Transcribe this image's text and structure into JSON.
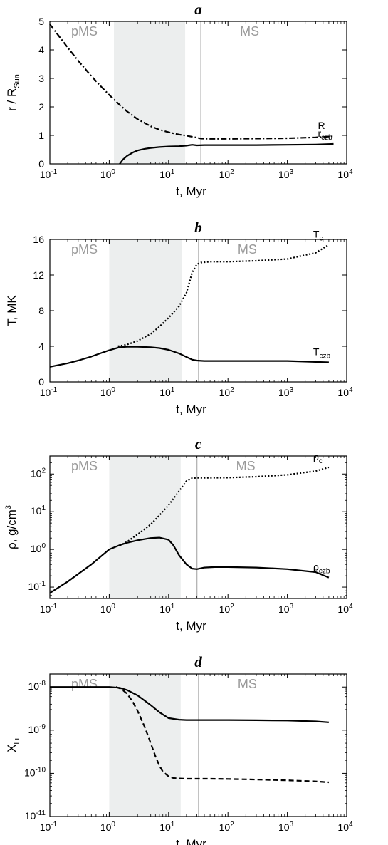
{
  "chart_data": [
    {
      "type": "line",
      "title": "a",
      "xlabel": "t, Myr",
      "ylabel": "r / R",
      "ylabel_sub": "Sun",
      "xscale": "log",
      "xlim": [
        0.1,
        10000
      ],
      "ylim": [
        0,
        5
      ],
      "yticks": [
        0,
        1,
        2,
        3,
        4,
        5
      ],
      "regions": [
        {
          "label": "pMS",
          "x": [
            1.2,
            19
          ],
          "shaded": true
        },
        {
          "label": "MS",
          "x": [
            35,
            10000
          ],
          "shaded": false
        }
      ],
      "marker_line_x": 35,
      "series": [
        {
          "label": "R",
          "label_sub": "",
          "style": "dashdot",
          "x": [
            0.1,
            0.15,
            0.2,
            0.3,
            0.5,
            0.7,
            1,
            1.5,
            2,
            3,
            5,
            7,
            10,
            15,
            20,
            30,
            35,
            50,
            100,
            300,
            1000,
            3000,
            6000
          ],
          "y": [
            4.9,
            4.42,
            4.08,
            3.62,
            3.08,
            2.75,
            2.42,
            2.07,
            1.84,
            1.57,
            1.32,
            1.2,
            1.11,
            1.03,
            0.99,
            0.92,
            0.89,
            0.88,
            0.88,
            0.89,
            0.9,
            0.93,
            0.97
          ]
        },
        {
          "label": "r",
          "label_sub": "czb",
          "style": "solid",
          "x": [
            1.5,
            1.7,
            2,
            2.5,
            3,
            4,
            5,
            7,
            10,
            15,
            20,
            25,
            30,
            40,
            100,
            300,
            1000,
            3000,
            6000
          ],
          "y": [
            0,
            0.15,
            0.28,
            0.4,
            0.47,
            0.53,
            0.56,
            0.59,
            0.61,
            0.62,
            0.64,
            0.67,
            0.65,
            0.66,
            0.66,
            0.66,
            0.67,
            0.68,
            0.7
          ]
        }
      ]
    },
    {
      "type": "line",
      "title": "b",
      "xlabel": "t, Myr",
      "ylabel": "T, MK",
      "ylabel_sub": "",
      "xscale": "log",
      "xlim": [
        0.1,
        10000
      ],
      "ylim": [
        0,
        16
      ],
      "yticks": [
        0,
        4,
        8,
        12,
        16
      ],
      "regions": [
        {
          "label": "pMS",
          "x": [
            1.0,
            17
          ],
          "shaded": true
        },
        {
          "label": "MS",
          "x": [
            32,
            10000
          ],
          "shaded": false
        }
      ],
      "marker_line_x": 32,
      "series": [
        {
          "label": "T",
          "label_sub": "c",
          "style": "dotted",
          "x": [
            1.4,
            2,
            3,
            5,
            7,
            10,
            15,
            20,
            25,
            30,
            35,
            50,
            100,
            300,
            1000,
            3000,
            5000
          ],
          "y": [
            4.0,
            4.2,
            4.6,
            5.4,
            6.2,
            7.2,
            8.5,
            10.0,
            12.3,
            13.2,
            13.4,
            13.5,
            13.5,
            13.6,
            13.8,
            14.5,
            15.4
          ]
        },
        {
          "label": "T",
          "label_sub": "czb",
          "style": "solid",
          "x": [
            0.1,
            0.2,
            0.3,
            0.5,
            0.7,
            1,
            1.5,
            2,
            3,
            5,
            7,
            10,
            15,
            20,
            25,
            30,
            40,
            100,
            1000,
            5000
          ],
          "y": [
            1.7,
            2.1,
            2.4,
            2.85,
            3.2,
            3.55,
            3.9,
            3.95,
            3.95,
            3.9,
            3.8,
            3.6,
            3.2,
            2.8,
            2.5,
            2.4,
            2.35,
            2.35,
            2.35,
            2.2
          ]
        }
      ]
    },
    {
      "type": "line",
      "title": "c",
      "xlabel": "t, Myr",
      "ylabel": "ρ, g/cm",
      "ylabel_sup": "3",
      "xscale": "log",
      "yscale": "log",
      "xlim": [
        0.1,
        10000
      ],
      "ylim": [
        0.05,
        300
      ],
      "yticks": [
        0.1,
        1,
        10,
        100
      ],
      "regions": [
        {
          "label": "pMS",
          "x": [
            1.0,
            16
          ],
          "shaded": true
        },
        {
          "label": "MS",
          "x": [
            30,
            10000
          ],
          "shaded": false
        }
      ],
      "marker_line_x": 30,
      "series": [
        {
          "label": "ρ",
          "label_sub": "c",
          "style": "dotted",
          "x": [
            1.5,
            2,
            3,
            5,
            7,
            10,
            15,
            20,
            25,
            30,
            40,
            100,
            300,
            1000,
            3000,
            5000
          ],
          "y": [
            1.25,
            1.6,
            2.5,
            4.6,
            8,
            15,
            35,
            65,
            78,
            79,
            79,
            80,
            85,
            95,
            120,
            150
          ]
        },
        {
          "label": "ρ",
          "label_sub": "czb",
          "style": "solid",
          "x": [
            0.1,
            0.2,
            0.5,
            1,
            1.5,
            2,
            3,
            5,
            7,
            10,
            12,
            15,
            20,
            25,
            30,
            40,
            60,
            100,
            300,
            1000,
            3000,
            5000
          ],
          "y": [
            0.07,
            0.14,
            0.4,
            1.0,
            1.3,
            1.5,
            1.75,
            2.0,
            2.05,
            1.8,
            1.3,
            0.7,
            0.4,
            0.31,
            0.3,
            0.33,
            0.34,
            0.34,
            0.33,
            0.3,
            0.25,
            0.18
          ]
        }
      ]
    },
    {
      "type": "line",
      "title": "d",
      "xlabel": "t, Myr",
      "ylabel": "X",
      "ylabel_sub": "Li",
      "xscale": "log",
      "yscale": "log",
      "xlim": [
        0.1,
        10000
      ],
      "ylim": [
        1e-11,
        2e-08
      ],
      "yticks": [
        1e-11,
        1e-10,
        1e-09,
        1e-08
      ],
      "regions": [
        {
          "label": "pMS",
          "x": [
            1.0,
            16
          ],
          "shaded": true
        },
        {
          "label": "MS",
          "x": [
            32,
            10000
          ],
          "shaded": false
        }
      ],
      "marker_line_x": 32,
      "series": [
        {
          "label": "",
          "label_sub": "",
          "style": "solid",
          "x": [
            0.1,
            0.5,
            1,
            1.5,
            2,
            3,
            4,
            5,
            7,
            10,
            15,
            20,
            50,
            100,
            300,
            1000,
            3000,
            5000
          ],
          "y": [
            1e-08,
            1e-08,
            1e-08,
            9.6e-09,
            8.5e-09,
            6.4e-09,
            4.8e-09,
            3.8e-09,
            2.6e-09,
            1.9e-09,
            1.75e-09,
            1.72e-09,
            1.72e-09,
            1.72e-09,
            1.7e-09,
            1.67e-09,
            1.6e-09,
            1.52e-09
          ]
        },
        {
          "label": "",
          "label_sub": "",
          "style": "dashed",
          "x": [
            1.3,
            1.6,
            2,
            2.5,
            3,
            4,
            5,
            6,
            7,
            8,
            10,
            12,
            15,
            20,
            50,
            100,
            300,
            1000,
            3000,
            5000
          ],
          "y": [
            1e-08,
            9e-09,
            7e-09,
            4.5e-09,
            2.8e-09,
            1.15e-09,
            5e-10,
            2.5e-10,
            1.5e-10,
            1.1e-10,
            8.5e-11,
            7.8e-11,
            7.6e-11,
            7.5e-11,
            7.5e-11,
            7.4e-11,
            7.2e-11,
            6.9e-11,
            6.5e-11,
            6.2e-11
          ]
        }
      ]
    }
  ]
}
